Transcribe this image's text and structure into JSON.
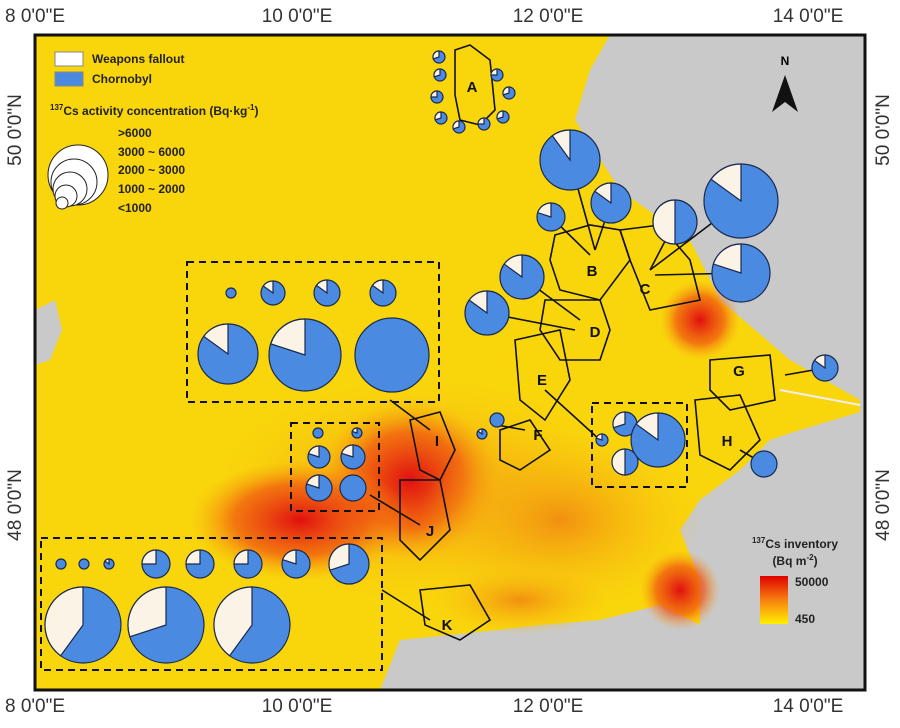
{
  "axes": {
    "top": [
      "8 0'0\"E",
      "10 0'0\"E",
      "12 0'0\"E",
      "14 0'0\"E"
    ],
    "bottom": [
      "8 0'0\"E",
      "10 0'0\"E",
      "12 0'0\"E",
      "14 0'0\"E"
    ],
    "left": [
      "50 0'0\"N",
      "48 0'0\"N"
    ],
    "right": [
      "50 0'0\"N",
      "48 0'0\"N"
    ]
  },
  "legend": {
    "weapons": "Weapons fallout",
    "chornobyl": "Chornobyl",
    "title_sup": "137",
    "title": "Cs activity concentration (Bq·kg",
    "title_sup2": "-1",
    "title_end": ")",
    "classes": [
      ">6000",
      "3000 ~ 6000",
      "2000 ~ 3000",
      "1000 ~ 2000",
      "<1000"
    ]
  },
  "north": "N",
  "regions": [
    "A",
    "B",
    "C",
    "D",
    "E",
    "F",
    "G",
    "H",
    "I",
    "J",
    "K"
  ],
  "colorbar": {
    "sup": "137",
    "title": "Cs inventory",
    "unit": "(Bq m",
    "unit_sup": "-2",
    "unit_end": ")",
    "max": 50000,
    "min": 450
  },
  "pies": [
    70,
    75,
    70,
    70,
    75,
    70,
    70,
    75,
    70,
    90,
    85,
    80,
    50,
    85,
    80,
    85,
    85,
    100,
    85,
    85,
    85,
    85,
    80,
    100,
    100,
    80,
    80,
    80,
    80,
    100,
    85,
    100,
    80,
    70,
    50,
    85,
    85,
    100,
    100,
    100,
    85,
    75,
    75,
    75,
    80,
    70,
    60,
    70,
    60
  ]
}
